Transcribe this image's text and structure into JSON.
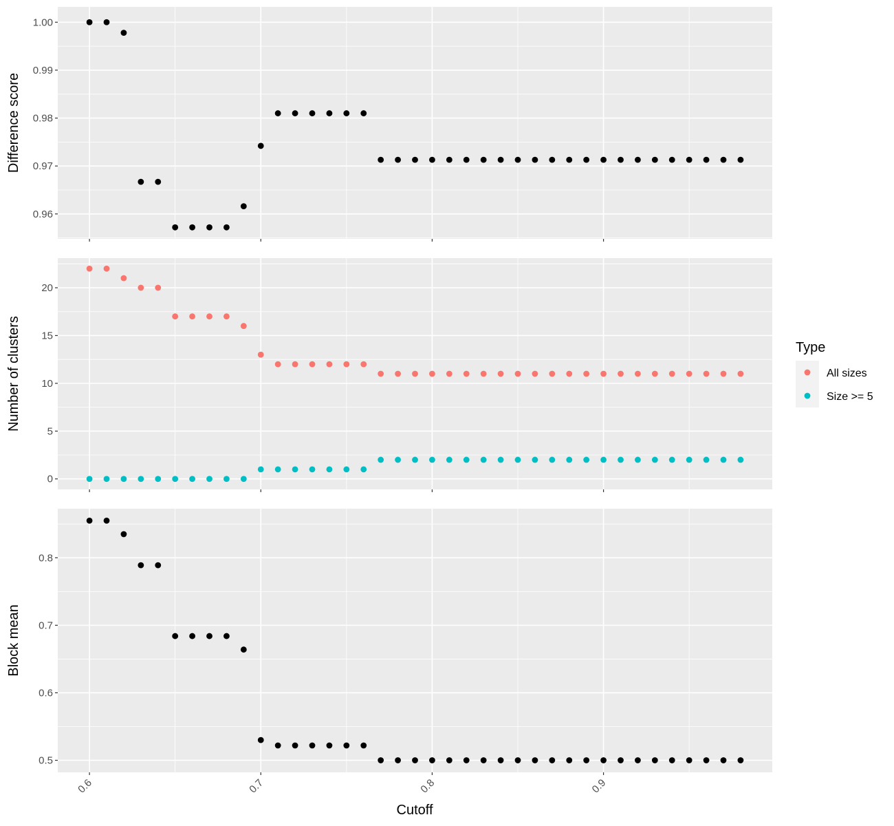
{
  "chart_data": {
    "type": "scatter",
    "xlabel": "Cutoff",
    "x_ticks": [
      0.6,
      0.7,
      0.8,
      0.9
    ],
    "x_tick_labels": [
      "0.6",
      "0.7",
      "0.8",
      "0.9"
    ],
    "xlim": [
      0.5815,
      0.9985
    ],
    "x": [
      0.6,
      0.61,
      0.62,
      0.63,
      0.64,
      0.65,
      0.66,
      0.67,
      0.68,
      0.69,
      0.7,
      0.71,
      0.72,
      0.73,
      0.74,
      0.75,
      0.76,
      0.77,
      0.78,
      0.79,
      0.8,
      0.81,
      0.82,
      0.83,
      0.84,
      0.85,
      0.86,
      0.87,
      0.88,
      0.89,
      0.9,
      0.91,
      0.92,
      0.93,
      0.94,
      0.95,
      0.96,
      0.97,
      0.98
    ],
    "background_color": "#ebebeb",
    "grid": true,
    "panels": [
      {
        "ylabel": "Difference score",
        "ylim": [
          0.9548,
          1.0032
        ],
        "y_ticks": [
          0.96,
          0.97,
          0.98,
          0.99,
          1.0
        ],
        "y_tick_labels": [
          "0.96",
          "0.97",
          "0.98",
          "0.99",
          "1.00"
        ],
        "series": [
          {
            "color": "#000000",
            "values": [
              1.0,
              1.0,
              0.9978,
              0.9667,
              0.9667,
              0.9572,
              0.9572,
              0.9572,
              0.9572,
              0.9616,
              0.9742,
              0.981,
              0.981,
              0.981,
              0.981,
              0.981,
              0.981,
              0.9713,
              0.9713,
              0.9713,
              0.9713,
              0.9713,
              0.9713,
              0.9713,
              0.9713,
              0.9713,
              0.9713,
              0.9713,
              0.9713,
              0.9713,
              0.9713,
              0.9713,
              0.9713,
              0.9713,
              0.9713,
              0.9713,
              0.9713,
              0.9713,
              0.9713
            ]
          }
        ]
      },
      {
        "ylabel": "Number of clusters",
        "ylim": [
          -1.1,
          23.1
        ],
        "y_ticks": [
          0,
          5,
          10,
          15,
          20
        ],
        "y_tick_labels": [
          "0",
          "5",
          "10",
          "15",
          "20"
        ],
        "series": [
          {
            "name": "All sizes",
            "color": "#f8766d",
            "values": [
              22,
              22,
              21,
              20,
              20,
              17,
              17,
              17,
              17,
              16,
              13,
              12,
              12,
              12,
              12,
              12,
              12,
              11,
              11,
              11,
              11,
              11,
              11,
              11,
              11,
              11,
              11,
              11,
              11,
              11,
              11,
              11,
              11,
              11,
              11,
              11,
              11,
              11,
              11
            ]
          },
          {
            "name": "Size >= 5",
            "color": "#00bfc4",
            "values": [
              0,
              0,
              0,
              0,
              0,
              0,
              0,
              0,
              0,
              0,
              1,
              1,
              1,
              1,
              1,
              1,
              1,
              2,
              2,
              2,
              2,
              2,
              2,
              2,
              2,
              2,
              2,
              2,
              2,
              2,
              2,
              2,
              2,
              2,
              2,
              2,
              2,
              2,
              2
            ]
          }
        ]
      },
      {
        "ylabel": "Block mean",
        "ylim": [
          0.4822,
          0.8727
        ],
        "y_ticks": [
          0.5,
          0.6,
          0.7,
          0.8
        ],
        "y_tick_labels": [
          "0.5",
          "0.6",
          "0.7",
          "0.8"
        ],
        "series": [
          {
            "color": "#000000",
            "values": [
              0.855,
              0.855,
              0.835,
              0.789,
              0.789,
              0.684,
              0.684,
              0.684,
              0.684,
              0.664,
              0.53,
              0.522,
              0.522,
              0.522,
              0.522,
              0.522,
              0.522,
              0.5,
              0.5,
              0.5,
              0.5,
              0.5,
              0.5,
              0.5,
              0.5,
              0.5,
              0.5,
              0.5,
              0.5,
              0.5,
              0.5,
              0.5,
              0.5,
              0.5,
              0.5,
              0.5,
              0.5,
              0.5,
              0.5
            ]
          }
        ]
      }
    ],
    "legend": {
      "title": "Type",
      "position": "right",
      "entries": [
        {
          "label": "All sizes",
          "color": "#f8766d"
        },
        {
          "label": "Size >= 5",
          "color": "#00bfc4"
        }
      ]
    }
  }
}
